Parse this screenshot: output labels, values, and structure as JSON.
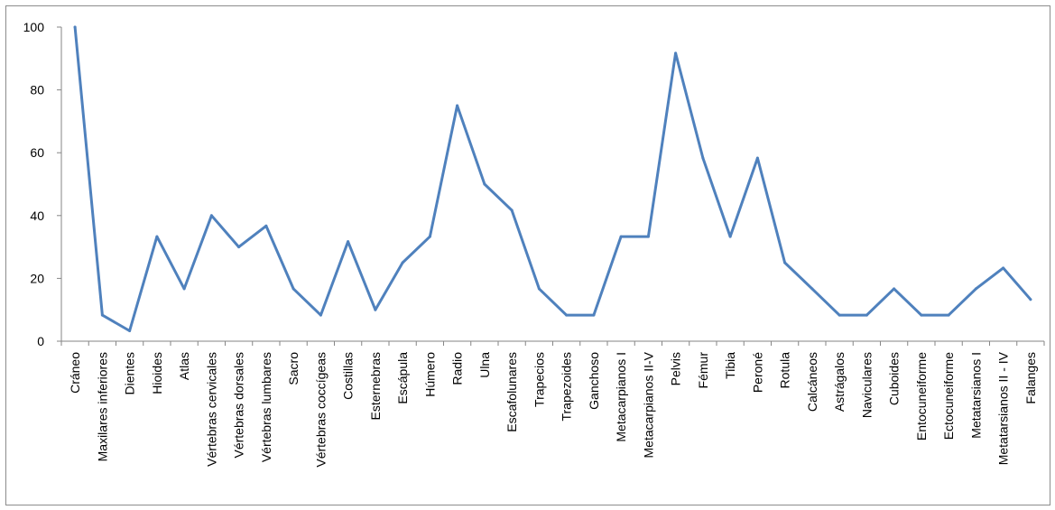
{
  "chart_data": {
    "type": "line",
    "title": "",
    "xlabel": "",
    "ylabel": "",
    "ylim": [
      0,
      100
    ],
    "yticks": [
      0,
      20,
      40,
      60,
      80,
      100
    ],
    "grid": false,
    "legend": "none",
    "line_color": "#4F81BD",
    "axis_color": "#868686",
    "categories": [
      "Cráneo",
      "Maxilares inferiores",
      "Dientes",
      "Hioides",
      "Atlas",
      "Vértebras cervicales",
      "Vértebras dorsales",
      "Vértebras lumbares",
      "Sacro",
      "Vértebras coccígeas",
      "Costillas",
      "Esternebras",
      "Escápula",
      "Húmero",
      "Radio",
      "Ulna",
      "Escafolunares",
      "Trapecios",
      "Trapezoides",
      "Ganchoso",
      "Metacarpianos I",
      "Metacarpianos II-V",
      "Pelvis",
      "Fémur",
      "Tibia",
      "Peroné",
      "Rotula",
      "Calcáneos",
      "Astrágalos",
      "Naviculares",
      "Cuboides",
      "Entocuneiforme",
      "Ectocuneiforme",
      "Metatarsianos I",
      "Metatarsianos II - IV",
      "Falanges"
    ],
    "series": [
      {
        "values": [
          100,
          8.3,
          3.3,
          33.3,
          16.7,
          40,
          30,
          36.7,
          16.7,
          8.3,
          31.7,
          10,
          25,
          33.3,
          75,
          50,
          41.7,
          16.7,
          8.3,
          8.3,
          33.3,
          33.3,
          91.7,
          58.3,
          33.3,
          58.3,
          25,
          16.7,
          8.3,
          8.3,
          16.7,
          8.3,
          8.3,
          16.7,
          23.3,
          13.3
        ]
      }
    ]
  }
}
